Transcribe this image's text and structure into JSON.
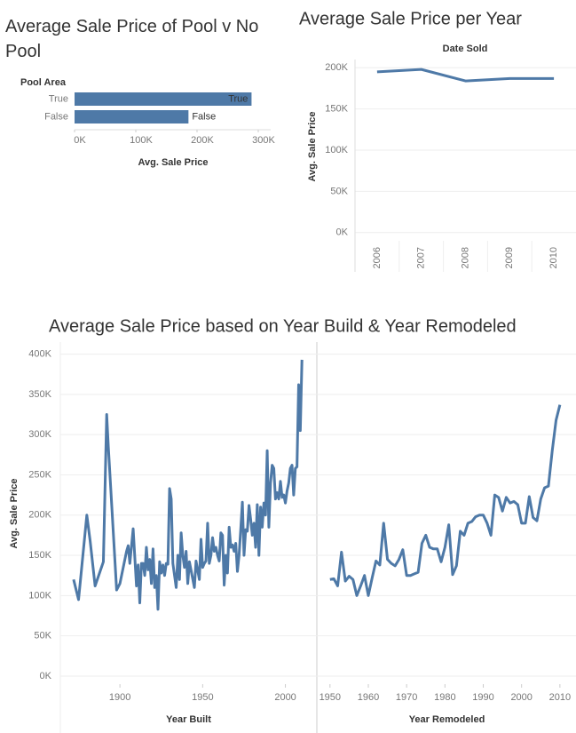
{
  "chart_data": [
    {
      "type": "bar",
      "horizontal": true,
      "title": "Average Sale Price of Pool v No Pool",
      "category_label": "Pool Area",
      "x_label": "Avg. Sale Price",
      "categories": [
        "True",
        "False"
      ],
      "values": [
        289000,
        186000
      ],
      "color": "#4e79a7",
      "xlim": [
        0,
        300000
      ],
      "xticks": [
        {
          "value": 0,
          "label": "0K"
        },
        {
          "value": 100000,
          "label": "100K"
        },
        {
          "value": 200000,
          "label": "200K"
        },
        {
          "value": 300000,
          "label": "300K"
        }
      ]
    },
    {
      "type": "line",
      "title": "Average Sale Price per Year",
      "x_label": "Date Sold",
      "y_label": "Avg. Sale Price",
      "categories": [
        "2006",
        "2007",
        "2008",
        "2009",
        "2010"
      ],
      "values": [
        195000,
        198000,
        184000,
        187000,
        187000
      ],
      "color": "#4e79a7",
      "ylim": [
        -10000,
        210000
      ],
      "yticks": [
        {
          "value": 0,
          "label": "0K"
        },
        {
          "value": 50000,
          "label": "50K"
        },
        {
          "value": 100000,
          "label": "100K"
        },
        {
          "value": 150000,
          "label": "150K"
        },
        {
          "value": 200000,
          "label": "200K"
        }
      ],
      "grid": true
    },
    {
      "type": "line",
      "title": "Average Sale Price based on Year Build & Year Remodeled",
      "y_label": "Avg. Sale Price",
      "color": "#4e79a7",
      "grid": true,
      "ylim": [
        -10000,
        415000
      ],
      "yticks": [
        {
          "value": 0,
          "label": "0K"
        },
        {
          "value": 50000,
          "label": "50K"
        },
        {
          "value": 100000,
          "label": "100K"
        },
        {
          "value": 150000,
          "label": "150K"
        },
        {
          "value": 200000,
          "label": "200K"
        },
        {
          "value": 250000,
          "label": "250K"
        },
        {
          "value": 300000,
          "label": "300K"
        },
        {
          "value": 350000,
          "label": "350K"
        },
        {
          "value": 400000,
          "label": "400K"
        }
      ],
      "panes": [
        {
          "x_label": "Year Built",
          "xlim": [
            1864,
            2019
          ],
          "xticks": [
            1900,
            1950,
            2000
          ],
          "x": [
            1872,
            1875,
            1880,
            1882,
            1885,
            1890,
            1892,
            1893,
            1898,
            1900,
            1904,
            1905,
            1906,
            1908,
            1910,
            1911,
            1912,
            1913,
            1914,
            1915,
            1916,
            1917,
            1918,
            1919,
            1920,
            1921,
            1922,
            1923,
            1924,
            1925,
            1926,
            1927,
            1928,
            1929,
            1930,
            1931,
            1932,
            1934,
            1935,
            1936,
            1937,
            1938,
            1939,
            1940,
            1941,
            1942,
            1945,
            1946,
            1948,
            1949,
            1950,
            1951,
            1952,
            1953,
            1954,
            1955,
            1956,
            1957,
            1958,
            1959,
            1960,
            1961,
            1962,
            1963,
            1964,
            1965,
            1966,
            1967,
            1968,
            1969,
            1970,
            1971,
            1972,
            1973,
            1974,
            1975,
            1976,
            1977,
            1978,
            1979,
            1980,
            1981,
            1982,
            1983,
            1984,
            1985,
            1986,
            1987,
            1988,
            1989,
            1990,
            1991,
            1992,
            1993,
            1994,
            1995,
            1996,
            1997,
            1998,
            1999,
            2000,
            2001,
            2002,
            2003,
            2004,
            2005,
            2006,
            2007,
            2008,
            2009,
            2010
          ],
          "values": [
            120000,
            95000,
            200000,
            168000,
            112000,
            142000,
            325000,
            285000,
            107000,
            115000,
            155000,
            162000,
            140000,
            183000,
            112000,
            138000,
            91000,
            140000,
            140000,
            125000,
            160000,
            132000,
            145000,
            115000,
            158000,
            110000,
            125000,
            83000,
            142000,
            128000,
            138000,
            125000,
            140000,
            139000,
            233000,
            220000,
            140000,
            110000,
            150000,
            120000,
            178000,
            150000,
            135000,
            155000,
            115000,
            142000,
            110000,
            143000,
            120000,
            170000,
            135000,
            140000,
            143000,
            190000,
            140000,
            150000,
            172000,
            155000,
            160000,
            150000,
            143000,
            178000,
            175000,
            113000,
            150000,
            128000,
            185000,
            160000,
            163000,
            155000,
            165000,
            130000,
            150000,
            182000,
            216000,
            150000,
            182000,
            180000,
            212000,
            195000,
            175000,
            190000,
            160000,
            213000,
            150000,
            210000,
            185000,
            215000,
            200000,
            280000,
            185000,
            240000,
            262000,
            258000,
            220000,
            228000,
            220000,
            242000,
            222000,
            225000,
            215000,
            230000,
            240000,
            258000,
            262000,
            225000,
            258000,
            260000,
            362000,
            305000,
            393000
          ]
        },
        {
          "x_label": "Year Remodeled",
          "xlim": [
            1946.8,
            2014.2
          ],
          "xticks": [
            1950,
            1960,
            1970,
            1980,
            1990,
            2000,
            2010
          ],
          "x": [
            1950,
            1951,
            1952,
            1953,
            1954,
            1955,
            1956,
            1957,
            1958,
            1959,
            1960,
            1961,
            1962,
            1963,
            1964,
            1965,
            1966,
            1967,
            1968,
            1969,
            1970,
            1971,
            1972,
            1973,
            1974,
            1975,
            1976,
            1977,
            1978,
            1979,
            1980,
            1981,
            1982,
            1983,
            1984,
            1985,
            1986,
            1987,
            1988,
            1989,
            1990,
            1991,
            1992,
            1993,
            1994,
            1995,
            1996,
            1997,
            1998,
            1999,
            2000,
            2001,
            2002,
            2003,
            2004,
            2005,
            2006,
            2007,
            2008,
            2009,
            2010
          ],
          "values": [
            120000,
            121000,
            112000,
            154000,
            118000,
            124000,
            120000,
            100000,
            112000,
            125000,
            100000,
            122000,
            143000,
            138000,
            190000,
            145000,
            140000,
            137000,
            145000,
            157000,
            125000,
            125000,
            127000,
            129000,
            165000,
            175000,
            160000,
            158000,
            158000,
            142000,
            160000,
            188000,
            126000,
            137000,
            180000,
            175000,
            190000,
            192000,
            198000,
            200000,
            200000,
            190000,
            175000,
            225000,
            222000,
            205000,
            222000,
            215000,
            217000,
            213000,
            190000,
            190000,
            223000,
            197000,
            193000,
            220000,
            234000,
            236000,
            280000,
            318000,
            337000
          ]
        }
      ]
    }
  ]
}
